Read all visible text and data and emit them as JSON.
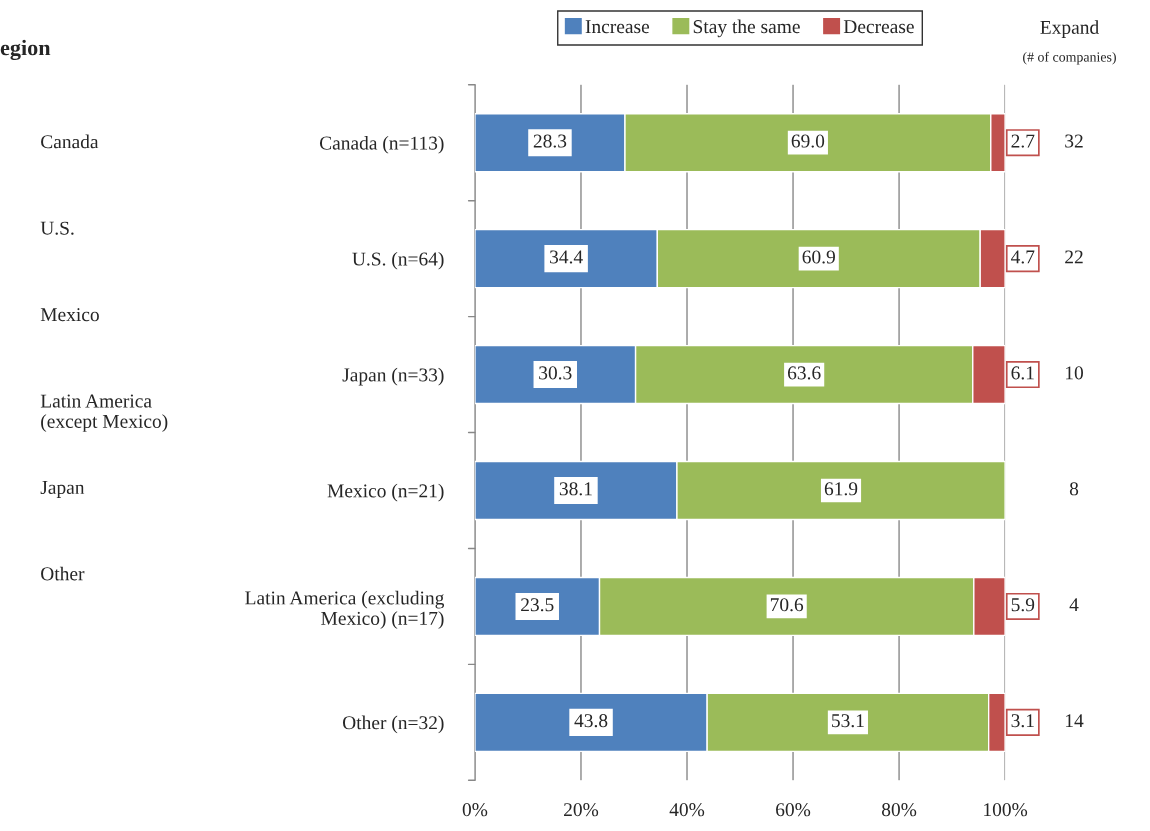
{
  "chart_data": {
    "type": "bar",
    "orientation": "horizontal",
    "stacked": true,
    "categories": [
      "Canada (n=113)",
      "U.S. (n=64)",
      "Japan (n=33)",
      "Mexico (n=21)",
      "Latin America (excluding\nMexico) (n=17)",
      "Other (n=32)"
    ],
    "series": [
      {
        "name": "Increase",
        "color": "#4f81bd",
        "values": [
          28.3,
          34.4,
          30.3,
          38.1,
          23.5,
          43.8
        ],
        "value_labels": [
          "28.3",
          "34.4",
          "30.3",
          "38.1",
          "23.5",
          "43.8"
        ]
      },
      {
        "name": "Stay the same",
        "color": "#9bbb59",
        "values": [
          69.0,
          60.9,
          63.6,
          61.9,
          70.6,
          53.1
        ],
        "value_labels": [
          "69.0",
          "60.9",
          "63.6",
          "61.9",
          "70.6",
          "53.1"
        ]
      },
      {
        "name": "Decrease",
        "color": "#c0504d",
        "values": [
          2.7,
          4.7,
          6.1,
          null,
          5.9,
          3.1
        ],
        "value_labels": [
          "2.7",
          "4.7",
          "6.1",
          null,
          "5.9",
          "3.1"
        ]
      }
    ],
    "xlim": [
      0,
      100
    ],
    "xticks": [
      {
        "value": 0,
        "label": "0%"
      },
      {
        "value": 20,
        "label": "20%"
      },
      {
        "value": 40,
        "label": "40%"
      },
      {
        "value": 60,
        "label": "60%"
      },
      {
        "value": 80,
        "label": "80%"
      },
      {
        "value": 100,
        "label": "100%"
      }
    ],
    "grid": "x",
    "legend": "top",
    "annotations": [
      "egion",
      "Expand",
      "(# of companies)",
      "Canada",
      "U.S.",
      "Mexico",
      "Latin America\n(except Mexico)",
      "Japan",
      "Other",
      "32",
      "22",
      "10",
      "8",
      "4",
      "14"
    ]
  }
}
